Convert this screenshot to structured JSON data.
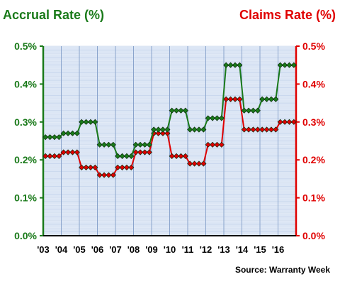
{
  "chart_data": {
    "type": "line",
    "left_axis_title": "Accrual Rate (%)",
    "right_axis_title": "Claims Rate (%)",
    "source": "Source: Warranty Week",
    "x_tick_labels": [
      "'03",
      "'04",
      "'05",
      "'06",
      "'07",
      "'08",
      "'09",
      "'10",
      "'11",
      "'12",
      "'13",
      "'14",
      "'15",
      "'16"
    ],
    "ylim": [
      0,
      0.5
    ],
    "y_tick_labels": [
      "0.0%",
      "0.1%",
      "0.2%",
      "0.3%",
      "0.4%",
      "0.5%"
    ],
    "grid": true,
    "series": [
      {
        "name": "Accrual Rate (%)",
        "color": "#1a7a1a",
        "axis": "left",
        "values": [
          0.26,
          0.26,
          0.26,
          0.26,
          0.27,
          0.27,
          0.27,
          0.27,
          0.3,
          0.3,
          0.3,
          0.3,
          0.24,
          0.24,
          0.24,
          0.24,
          0.21,
          0.21,
          0.21,
          0.21,
          0.24,
          0.24,
          0.24,
          0.24,
          0.28,
          0.28,
          0.28,
          0.28,
          0.33,
          0.33,
          0.33,
          0.33,
          0.28,
          0.28,
          0.28,
          0.28,
          0.31,
          0.31,
          0.31,
          0.31,
          0.45,
          0.45,
          0.45,
          0.45,
          0.33,
          0.33,
          0.33,
          0.33,
          0.36,
          0.36,
          0.36,
          0.36,
          0.45,
          0.45,
          0.45,
          0.45
        ]
      },
      {
        "name": "Claims Rate (%)",
        "color": "#e00000",
        "axis": "right",
        "values": [
          0.21,
          0.21,
          0.21,
          0.21,
          0.22,
          0.22,
          0.22,
          0.22,
          0.18,
          0.18,
          0.18,
          0.18,
          0.16,
          0.16,
          0.16,
          0.16,
          0.18,
          0.18,
          0.18,
          0.18,
          0.22,
          0.22,
          0.22,
          0.22,
          0.27,
          0.27,
          0.27,
          0.27,
          0.21,
          0.21,
          0.21,
          0.21,
          0.19,
          0.19,
          0.19,
          0.19,
          0.24,
          0.24,
          0.24,
          0.24,
          0.36,
          0.36,
          0.36,
          0.36,
          0.28,
          0.28,
          0.28,
          0.28,
          0.28,
          0.28,
          0.28,
          0.28,
          0.3,
          0.3,
          0.3,
          0.3
        ]
      }
    ]
  }
}
